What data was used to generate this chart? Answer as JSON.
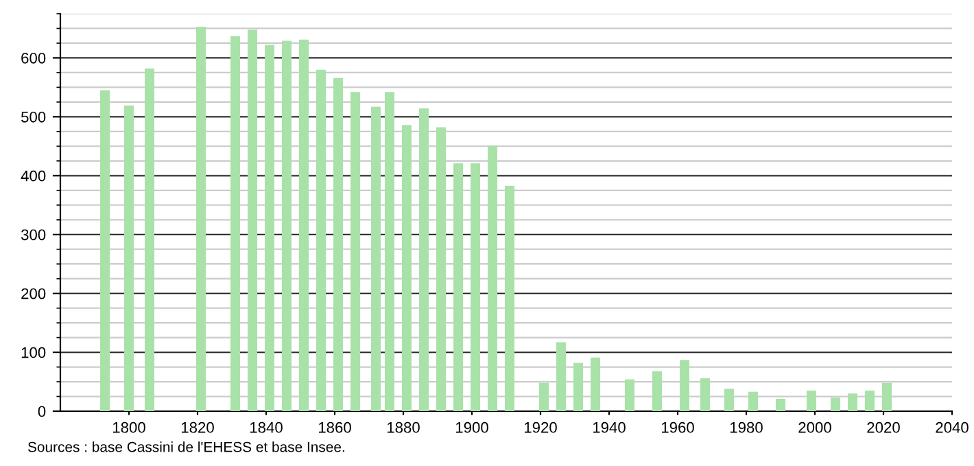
{
  "chart_data": {
    "type": "bar",
    "x": [
      1793,
      1800,
      1806,
      1821,
      1831,
      1836,
      1841,
      1846,
      1851,
      1856,
      1861,
      1866,
      1872,
      1876,
      1881,
      1886,
      1891,
      1896,
      1901,
      1906,
      1911,
      1921,
      1926,
      1931,
      1936,
      1946,
      1954,
      1962,
      1968,
      1975,
      1982,
      1990,
      1999,
      2006,
      2011,
      2016,
      2021
    ],
    "values": [
      545,
      519,
      582,
      653,
      637,
      648,
      622,
      629,
      631,
      580,
      566,
      542,
      517,
      542,
      486,
      514,
      482,
      421,
      421,
      450,
      383,
      48,
      117,
      82,
      91,
      54,
      68,
      87,
      56,
      38,
      33,
      21,
      35,
      23,
      30,
      35,
      48
    ],
    "color": "#a8e2a8",
    "xlim": [
      1780,
      2040
    ],
    "xticks": [
      1800,
      1820,
      1840,
      1860,
      1880,
      1900,
      1920,
      1940,
      1960,
      1980,
      2000,
      2020,
      2040
    ],
    "ylim": [
      0,
      675
    ],
    "yticks": [
      0,
      100,
      200,
      300,
      400,
      500,
      600
    ],
    "grid": "y",
    "annotations": [
      "Sources : base Cassini de l'EHESS et base Insee."
    ]
  }
}
